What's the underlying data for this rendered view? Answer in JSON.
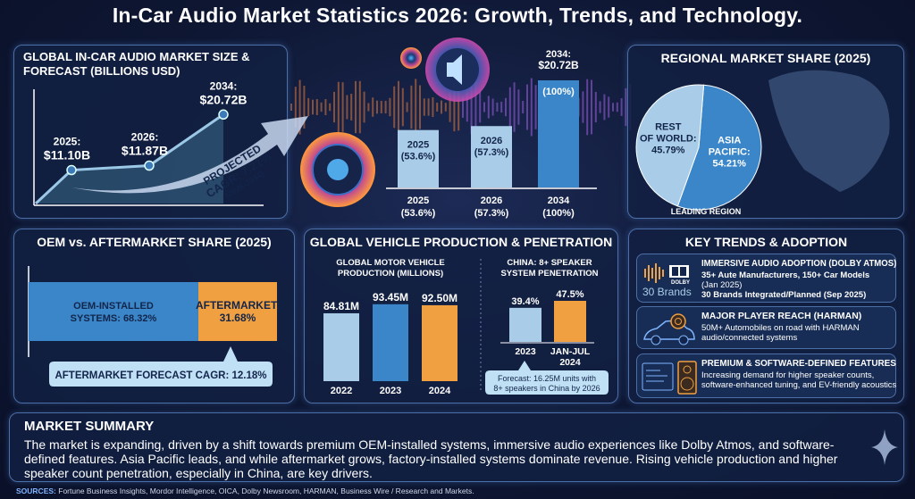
{
  "title": "In-Car Audio Market Statistics 2026: Growth, Trends, and Technology.",
  "colors": {
    "light_blue": "#a9cde8",
    "blue": "#3a86c8",
    "orange": "#f0a040",
    "background": "#0e1733",
    "panel_border": "#4d6fa8"
  },
  "market_size": {
    "title_line1": "GLOBAL IN-CAR AUDIO MARKET SIZE &",
    "title_line2": "FORECAST (BILLIONS USD)",
    "cagr_line1": "PROJECTED",
    "cagr_line2": "CAGR: 7.21%",
    "cagr_line3": "(2026-2034)"
  },
  "regional": {
    "title": "REGIONAL MARKET SHARE (2025)",
    "leading_label": "LEADING REGION"
  },
  "oem": {
    "title": "OEM vs. AFTERMARKET SHARE (2025)",
    "callout": "AFTERMARKET FORECAST CAGR: 12.18%"
  },
  "production": {
    "title": "GLOBAL VEHICLE PRODUCTION & PENETRATION",
    "left_title_line1": "GLOBAL MOTOR VEHICLE",
    "left_title_line2": "PRODUCTION (MILLIONS)",
    "right_title_line1": "CHINA: 8+ SPEAKER",
    "right_title_line2": "SYSTEM PENETRATION",
    "forecast_line1": "Forecast: 16.25M units with",
    "forecast_line2": "8+ speakers in China by 2026"
  },
  "trends": {
    "title": "KEY TRENDS & ADOPTION",
    "items": [
      {
        "icon": "dolby-waveform-icon",
        "badge": "30 Brands",
        "logo_text": "DOLBY",
        "heading": "IMMERSIVE AUDIO ADOPTION (DOLBY ATMOS)",
        "line1": "35+ Aute Manufacturers, 150+ Car Models",
        "line2": "(Jan 2025)",
        "line3": "30 Brands Integrated/Planned (Sep 2025)"
      },
      {
        "icon": "car-speaker-icon",
        "heading": "MAJOR PLAYER REACH (HARMAN)",
        "line1": "50M+ Automobiles on road with HARMAN",
        "line2": "audio/connected systems"
      },
      {
        "icon": "software-speaker-icon",
        "heading": "PREMIUM & SOFTWARE-DEFINED FEATURES",
        "line1": "Increasing demand for higher speaker counts,",
        "line2": "software-enhanced tuning, and EV-friendly acoustics"
      }
    ]
  },
  "summary": {
    "title": "MARKET SUMMARY",
    "body": "The market is expanding, driven by a shift towards premium OEM-installed systems, immersive audio experiences like Dolby Atmos, and software-defined features. Asia Pacific leads, and while aftermarket grows, factory-installed systems dominate revenue. Rising vehicle production and higher speaker count penetration, especially in China, are key drivers."
  },
  "sources": {
    "label": "SOURCES:",
    "text": "Fortune Business Insights, Mordor Intelligence, OICA, Dolby Newsroom, HARMAN, Business Wire / Research and Markets."
  },
  "chart_data": [
    {
      "id": "market_size",
      "type": "line",
      "title": "GLOBAL IN-CAR AUDIO MARKET SIZE & FORECAST (BILLIONS USD)",
      "x": [
        "2025",
        "2026",
        "2034"
      ],
      "values": [
        11.1,
        11.87,
        20.72
      ],
      "labels": [
        "2025: $11.10B",
        "2026: $11.87B",
        "2034: $20.72B"
      ],
      "label_years": [
        "2025:",
        "2026:",
        "2034:"
      ],
      "label_values": [
        "$11.10B",
        "$11.87B",
        "$20.72B"
      ],
      "grid": false
    },
    {
      "id": "relative_size",
      "type": "bar",
      "categories": [
        "2025",
        "2026",
        "2034"
      ],
      "values": [
        53.6,
        57.3,
        100
      ],
      "labels": [
        "(53.6%)",
        "(57.3%)",
        "(100%)"
      ],
      "top_label_2034": "$20.72B",
      "top_label_year": "2034:",
      "ylim": [
        0,
        100
      ],
      "color": "#a9cde8",
      "highlight_color": "#3a86c8"
    },
    {
      "id": "regional",
      "type": "pie",
      "title": "REGIONAL MARKET SHARE (2025)",
      "slices": [
        {
          "label": "ASIA PACIFIC:",
          "value": 54.21,
          "display": "54.21%",
          "color": "#3a86c8"
        },
        {
          "label": "REST OF WORLD:",
          "value": 45.79,
          "display": "45.79%",
          "color": "#a9cde8"
        }
      ]
    },
    {
      "id": "oem_share",
      "type": "bar",
      "orientation": "horizontal-stacked",
      "title": "OEM vs. AFTERMARKET SHARE (2025)",
      "segments": [
        {
          "label_line1": "OEM-INSTALLED",
          "label_line2": "SYSTEMS: 68.32%",
          "value": 68.32,
          "color": "#3a86c8"
        },
        {
          "label_line1": "AFTERMARKET:",
          "label_line2": "31.68%",
          "value": 31.68,
          "color": "#f0a040"
        }
      ]
    },
    {
      "id": "production",
      "type": "bar",
      "title": "GLOBAL MOTOR VEHICLE PRODUCTION (MILLIONS)",
      "categories": [
        "2022",
        "2023",
        "2024"
      ],
      "values": [
        84.81,
        93.45,
        92.5
      ],
      "labels": [
        "84.81M",
        "93.45M",
        "92.50M"
      ],
      "colors": [
        "#a9cde8",
        "#3a86c8",
        "#f0a040"
      ]
    },
    {
      "id": "china_penetration",
      "type": "bar",
      "title": "CHINA: 8+ SPEAKER SYSTEM PENETRATION",
      "categories": [
        "2023",
        "JAN-JUL 2024"
      ],
      "category_lines": [
        [
          "2023"
        ],
        [
          "JAN-JUL",
          "2024"
        ]
      ],
      "values": [
        39.4,
        47.5
      ],
      "labels": [
        "39.4%",
        "47.5%"
      ],
      "colors": [
        "#a9cde8",
        "#f0a040"
      ]
    }
  ]
}
